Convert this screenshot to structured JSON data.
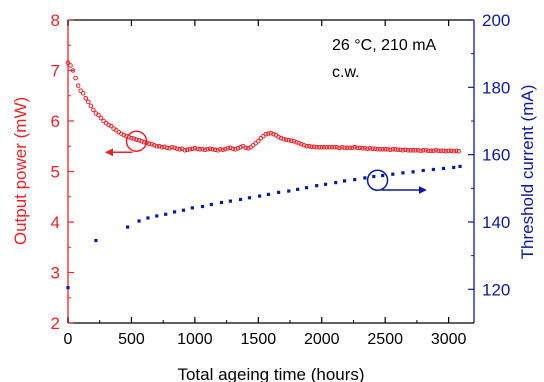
{
  "chart_data": {
    "type": "scatter",
    "xlabel": "Total ageing time (hours)",
    "ylabel_left": "Output power (mW)",
    "ylabel_right": "Threshold current (mA)",
    "annotation_line1": "26 °C, 210 mA",
    "annotation_line2": "c.w.",
    "xlim": [
      0,
      3200
    ],
    "ylim_left": [
      2,
      8
    ],
    "ylim_right": [
      110,
      200
    ],
    "x_ticks": [
      0,
      500,
      1000,
      1500,
      2000,
      2500,
      3000
    ],
    "x_tick_labels": [
      "0",
      "500",
      "1000",
      "1500",
      "2000",
      "2500",
      "3000"
    ],
    "y_left_ticks": [
      2,
      3,
      4,
      5,
      6,
      7,
      8
    ],
    "y_left_tick_labels": [
      "2",
      "3",
      "4",
      "5",
      "6",
      "7",
      "8"
    ],
    "y_right_ticks": [
      120,
      140,
      160,
      180,
      200
    ],
    "y_right_tick_labels": [
      "120",
      "140",
      "160",
      "180",
      "200"
    ],
    "colors": {
      "left": "#e8232a",
      "right": "#0a1a9c"
    },
    "series": [
      {
        "axis": "left",
        "marker": "open-circle",
        "points": [
          [
            0,
            7.15
          ],
          [
            20,
            7.1
          ],
          [
            40,
            7.0
          ],
          [
            60,
            6.85
          ],
          [
            80,
            6.7
          ],
          [
            100,
            6.6
          ],
          [
            120,
            6.55
          ],
          [
            140,
            6.45
          ],
          [
            160,
            6.38
          ],
          [
            180,
            6.3
          ],
          [
            200,
            6.22
          ],
          [
            220,
            6.15
          ],
          [
            240,
            6.12
          ],
          [
            260,
            6.06
          ],
          [
            280,
            6.0
          ],
          [
            300,
            5.96
          ],
          [
            320,
            5.92
          ],
          [
            340,
            5.9
          ],
          [
            360,
            5.85
          ],
          [
            380,
            5.82
          ],
          [
            400,
            5.78
          ],
          [
            420,
            5.75
          ],
          [
            440,
            5.72
          ],
          [
            460,
            5.7
          ],
          [
            480,
            5.68
          ],
          [
            500,
            5.66
          ],
          [
            520,
            5.65
          ],
          [
            540,
            5.63
          ],
          [
            560,
            5.62
          ],
          [
            580,
            5.6
          ],
          [
            600,
            5.58
          ],
          [
            620,
            5.57
          ],
          [
            640,
            5.55
          ],
          [
            660,
            5.54
          ],
          [
            680,
            5.52
          ],
          [
            700,
            5.5
          ],
          [
            720,
            5.5
          ],
          [
            740,
            5.48
          ],
          [
            760,
            5.49
          ],
          [
            780,
            5.47
          ],
          [
            800,
            5.46
          ],
          [
            820,
            5.48
          ],
          [
            840,
            5.47
          ],
          [
            860,
            5.45
          ],
          [
            880,
            5.44
          ],
          [
            900,
            5.45
          ],
          [
            920,
            5.42
          ],
          [
            940,
            5.43
          ],
          [
            960,
            5.44
          ],
          [
            980,
            5.45
          ],
          [
            1000,
            5.46
          ],
          [
            1020,
            5.45
          ],
          [
            1040,
            5.44
          ],
          [
            1060,
            5.44
          ],
          [
            1080,
            5.43
          ],
          [
            1100,
            5.44
          ],
          [
            1120,
            5.45
          ],
          [
            1140,
            5.44
          ],
          [
            1160,
            5.43
          ],
          [
            1180,
            5.42
          ],
          [
            1200,
            5.44
          ],
          [
            1220,
            5.43
          ],
          [
            1240,
            5.44
          ],
          [
            1260,
            5.46
          ],
          [
            1280,
            5.47
          ],
          [
            1300,
            5.45
          ],
          [
            1320,
            5.44
          ],
          [
            1340,
            5.46
          ],
          [
            1360,
            5.48
          ],
          [
            1380,
            5.5
          ],
          [
            1400,
            5.47
          ],
          [
            1420,
            5.46
          ],
          [
            1440,
            5.48
          ],
          [
            1460,
            5.52
          ],
          [
            1480,
            5.56
          ],
          [
            1500,
            5.6
          ],
          [
            1520,
            5.66
          ],
          [
            1540,
            5.7
          ],
          [
            1560,
            5.74
          ],
          [
            1580,
            5.75
          ],
          [
            1600,
            5.76
          ],
          [
            1620,
            5.74
          ],
          [
            1640,
            5.72
          ],
          [
            1660,
            5.68
          ],
          [
            1680,
            5.66
          ],
          [
            1700,
            5.64
          ],
          [
            1720,
            5.63
          ],
          [
            1740,
            5.62
          ],
          [
            1760,
            5.61
          ],
          [
            1780,
            5.6
          ],
          [
            1800,
            5.58
          ],
          [
            1820,
            5.56
          ],
          [
            1840,
            5.54
          ],
          [
            1860,
            5.52
          ],
          [
            1880,
            5.5
          ],
          [
            1900,
            5.5
          ],
          [
            1920,
            5.49
          ],
          [
            1940,
            5.49
          ],
          [
            1960,
            5.48
          ],
          [
            1980,
            5.48
          ],
          [
            2000,
            5.48
          ],
          [
            2020,
            5.48
          ],
          [
            2040,
            5.48
          ],
          [
            2060,
            5.48
          ],
          [
            2080,
            5.48
          ],
          [
            2100,
            5.48
          ],
          [
            2120,
            5.48
          ],
          [
            2140,
            5.47
          ],
          [
            2160,
            5.48
          ],
          [
            2180,
            5.47
          ],
          [
            2200,
            5.47
          ],
          [
            2220,
            5.47
          ],
          [
            2240,
            5.47
          ],
          [
            2260,
            5.48
          ],
          [
            2280,
            5.47
          ],
          [
            2300,
            5.47
          ],
          [
            2320,
            5.46
          ],
          [
            2340,
            5.46
          ],
          [
            2360,
            5.45
          ],
          [
            2380,
            5.46
          ],
          [
            2400,
            5.45
          ],
          [
            2420,
            5.45
          ],
          [
            2440,
            5.44
          ],
          [
            2460,
            5.44
          ],
          [
            2480,
            5.44
          ],
          [
            2500,
            5.44
          ],
          [
            2520,
            5.44
          ],
          [
            2540,
            5.43
          ],
          [
            2560,
            5.44
          ],
          [
            2580,
            5.44
          ],
          [
            2600,
            5.43
          ],
          [
            2620,
            5.43
          ],
          [
            2640,
            5.42
          ],
          [
            2660,
            5.43
          ],
          [
            2680,
            5.42
          ],
          [
            2700,
            5.42
          ],
          [
            2720,
            5.42
          ],
          [
            2740,
            5.42
          ],
          [
            2760,
            5.42
          ],
          [
            2780,
            5.41
          ],
          [
            2800,
            5.42
          ],
          [
            2820,
            5.42
          ],
          [
            2840,
            5.41
          ],
          [
            2860,
            5.41
          ],
          [
            2880,
            5.41
          ],
          [
            2900,
            5.42
          ],
          [
            2920,
            5.41
          ],
          [
            2940,
            5.41
          ],
          [
            2960,
            5.41
          ],
          [
            2980,
            5.4
          ],
          [
            3000,
            5.41
          ],
          [
            3020,
            5.41
          ],
          [
            3040,
            5.4
          ],
          [
            3060,
            5.41
          ],
          [
            3080,
            5.4
          ]
        ]
      },
      {
        "axis": "right",
        "marker": "filled-square",
        "points": [
          [
            0,
            120.5
          ],
          [
            220,
            134.5
          ],
          [
            470,
            138.5
          ],
          [
            560,
            140.3
          ],
          [
            630,
            141.2
          ],
          [
            700,
            141.8
          ],
          [
            770,
            142.3
          ],
          [
            840,
            143.0
          ],
          [
            910,
            143.5
          ],
          [
            980,
            144.2
          ],
          [
            1060,
            144.6
          ],
          [
            1130,
            145.2
          ],
          [
            1210,
            145.8
          ],
          [
            1280,
            146.2
          ],
          [
            1360,
            146.7
          ],
          [
            1430,
            147.2
          ],
          [
            1510,
            147.7
          ],
          [
            1580,
            148.2
          ],
          [
            1660,
            148.8
          ],
          [
            1740,
            149.2
          ],
          [
            1810,
            149.7
          ],
          [
            1880,
            150.2
          ],
          [
            1960,
            150.8
          ],
          [
            2030,
            151.2
          ],
          [
            2110,
            151.7
          ],
          [
            2180,
            152.2
          ],
          [
            2260,
            152.6
          ],
          [
            2340,
            153.1
          ],
          [
            2410,
            153.5
          ],
          [
            2480,
            153.8
          ],
          [
            2560,
            154.2
          ],
          [
            2640,
            154.6
          ],
          [
            2720,
            154.9
          ],
          [
            2800,
            155.3
          ],
          [
            2880,
            155.6
          ],
          [
            2960,
            155.9
          ],
          [
            3040,
            156.2
          ],
          [
            3090,
            156.5
          ]
        ]
      }
    ],
    "markers": [
      {
        "axis": "left",
        "circle_at": [
          540,
          5.6
        ],
        "arrow_to": [
          300,
          5.38
        ]
      },
      {
        "axis": "right",
        "circle_at": [
          2440,
          152.4
        ],
        "arrow_to": [
          2820,
          149.5
        ]
      }
    ]
  }
}
